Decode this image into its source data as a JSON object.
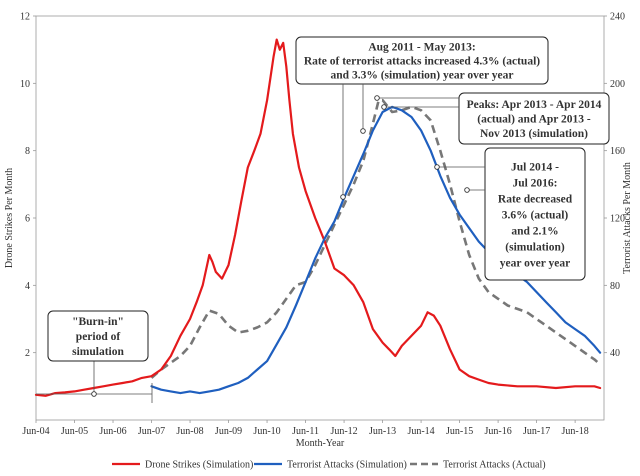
{
  "chart_data": {
    "type": "line",
    "xlabel": "Month-Year",
    "ylabel_left": "Drone Strikes Per Month",
    "ylabel_right": "Terrorist Attacks Per Month",
    "ylim_left": [
      0,
      12
    ],
    "ylim_right": [
      0,
      240
    ],
    "xlim": [
      2004.0,
      2018.75
    ],
    "left_ticks": [
      2,
      4,
      6,
      8,
      10,
      12
    ],
    "right_ticks": [
      40,
      80,
      120,
      160,
      200,
      240
    ],
    "x_ticks": [
      {
        "x": 2004.0,
        "label": "Jun-04"
      },
      {
        "x": 2005.0,
        "label": "Jun-05"
      },
      {
        "x": 2006.0,
        "label": "Jun-06"
      },
      {
        "x": 2007.0,
        "label": "Jun-07"
      },
      {
        "x": 2008.0,
        "label": "Jun-08"
      },
      {
        "x": 2009.0,
        "label": "Jun-09"
      },
      {
        "x": 2010.0,
        "label": "Jun-10"
      },
      {
        "x": 2011.0,
        "label": "Jun-11"
      },
      {
        "x": 2012.0,
        "label": "Jun-12"
      },
      {
        "x": 2013.0,
        "label": "Jun-13"
      },
      {
        "x": 2014.0,
        "label": "Jun-14"
      },
      {
        "x": 2015.0,
        "label": "Jun-15"
      },
      {
        "x": 2016.0,
        "label": "Jun-16"
      },
      {
        "x": 2017.0,
        "label": "Jun-17"
      },
      {
        "x": 2018.0,
        "label": "Jun-18"
      }
    ],
    "series": [
      {
        "name": "Drone Strikes (Simulation)",
        "axis": "left",
        "color": "#e41a1c",
        "style": "solid",
        "x": [
          2004.0,
          2004.25,
          2004.5,
          2004.75,
          2005.0,
          2005.25,
          2005.5,
          2005.75,
          2006.0,
          2006.25,
          2006.5,
          2006.75,
          2007.0,
          2007.25,
          2007.5,
          2007.75,
          2008.0,
          2008.17,
          2008.33,
          2008.5,
          2008.58,
          2008.67,
          2008.83,
          2009.0,
          2009.17,
          2009.33,
          2009.5,
          2009.67,
          2009.83,
          2010.0,
          2010.17,
          2010.25,
          2010.33,
          2010.42,
          2010.5,
          2010.58,
          2010.67,
          2010.83,
          2011.0,
          2011.25,
          2011.5,
          2011.75,
          2012.0,
          2012.25,
          2012.5,
          2012.75,
          2013.0,
          2013.17,
          2013.33,
          2013.5,
          2013.75,
          2014.0,
          2014.17,
          2014.33,
          2014.5,
          2014.75,
          2015.0,
          2015.25,
          2015.5,
          2015.75,
          2016.0,
          2016.5,
          2017.0,
          2017.5,
          2018.0,
          2018.5,
          2018.65
        ],
        "y": [
          0.75,
          0.72,
          0.8,
          0.82,
          0.85,
          0.9,
          0.95,
          1.0,
          1.05,
          1.1,
          1.15,
          1.25,
          1.3,
          1.5,
          1.9,
          2.5,
          3.0,
          3.5,
          4.0,
          4.9,
          4.7,
          4.4,
          4.2,
          4.6,
          5.5,
          6.5,
          7.5,
          8.0,
          8.5,
          9.5,
          10.8,
          11.3,
          11.0,
          11.2,
          10.5,
          9.5,
          8.5,
          7.5,
          6.8,
          6.0,
          5.3,
          4.5,
          4.3,
          4.0,
          3.5,
          2.7,
          2.3,
          2.1,
          1.9,
          2.2,
          2.5,
          2.8,
          3.2,
          3.1,
          2.8,
          2.1,
          1.5,
          1.3,
          1.2,
          1.1,
          1.05,
          1.0,
          1.0,
          0.95,
          1.0,
          1.0,
          0.95
        ]
      },
      {
        "name": "Terrorist Attacks (Simulation)",
        "axis": "right",
        "color": "#1f5fbf",
        "style": "solid",
        "x": [
          2007.0,
          2007.25,
          2007.5,
          2007.75,
          2008.0,
          2008.25,
          2008.5,
          2008.75,
          2009.0,
          2009.25,
          2009.5,
          2009.75,
          2010.0,
          2010.25,
          2010.5,
          2010.75,
          2011.0,
          2011.25,
          2011.5,
          2011.75,
          2012.0,
          2012.25,
          2012.5,
          2012.75,
          2013.0,
          2013.25,
          2013.5,
          2013.75,
          2014.0,
          2014.25,
          2014.5,
          2014.75,
          2015.0,
          2015.25,
          2015.5,
          2015.75,
          2016.0,
          2016.25,
          2016.5,
          2016.75,
          2017.0,
          2017.25,
          2017.5,
          2017.75,
          2018.0,
          2018.25,
          2018.5,
          2018.65
        ],
        "y": [
          20,
          18,
          17,
          16,
          17,
          16,
          17,
          18,
          20,
          22,
          25,
          30,
          35,
          45,
          55,
          68,
          82,
          96,
          108,
          118,
          132,
          145,
          158,
          172,
          183,
          186,
          184,
          180,
          172,
          160,
          145,
          132,
          122,
          114,
          106,
          100,
          94,
          90,
          86,
          82,
          76,
          70,
          64,
          58,
          54,
          50,
          44,
          40
        ]
      },
      {
        "name": "Terrorist Attacks (Actual)",
        "axis": "right",
        "color": "#777777",
        "style": "dashed",
        "x": [
          2007.0,
          2007.25,
          2007.5,
          2007.75,
          2008.0,
          2008.25,
          2008.5,
          2008.75,
          2009.0,
          2009.25,
          2009.5,
          2009.75,
          2010.0,
          2010.25,
          2010.5,
          2010.75,
          2011.0,
          2011.25,
          2011.5,
          2011.75,
          2012.0,
          2012.25,
          2012.5,
          2012.75,
          2012.9,
          2013.0,
          2013.25,
          2013.5,
          2013.75,
          2014.0,
          2014.25,
          2014.5,
          2014.75,
          2015.0,
          2015.25,
          2015.5,
          2015.75,
          2016.0,
          2016.25,
          2016.5,
          2016.75,
          2017.0,
          2017.25,
          2017.5,
          2017.75,
          2018.0,
          2018.25,
          2018.5,
          2018.65
        ],
        "y": [
          25,
          30,
          34,
          38,
          44,
          55,
          65,
          63,
          56,
          52,
          53,
          55,
          58,
          64,
          72,
          80,
          82,
          92,
          104,
          116,
          128,
          140,
          154,
          176,
          190,
          190,
          183,
          184,
          186,
          184,
          178,
          160,
          140,
          118,
          98,
          84,
          76,
          72,
          68,
          66,
          64,
          60,
          56,
          52,
          48,
          44,
          40,
          36,
          33
        ]
      }
    ],
    "annotations": [
      {
        "id": "burn-in",
        "lines": [
          "\"Burn-in\"",
          "period of",
          "simulation"
        ]
      },
      {
        "id": "aug2011",
        "lines": [
          "Aug 2011 - May 2013:",
          "Rate of terrorist attacks increased 4.3% (actual)",
          "and 3.3% (simulation) year over year"
        ]
      },
      {
        "id": "peaks",
        "lines": [
          "Peaks: Apr 2013 - Apr 2014",
          "(actual) and Apr 2013 -",
          "Nov 2013 (simulation)"
        ]
      },
      {
        "id": "jul2014",
        "lines": [
          "Jul 2014 -",
          "Jul 2016:",
          "Rate decreased",
          "3.6% (actual)",
          "and 2.1%",
          "(simulation)",
          "year over year"
        ]
      }
    ]
  }
}
